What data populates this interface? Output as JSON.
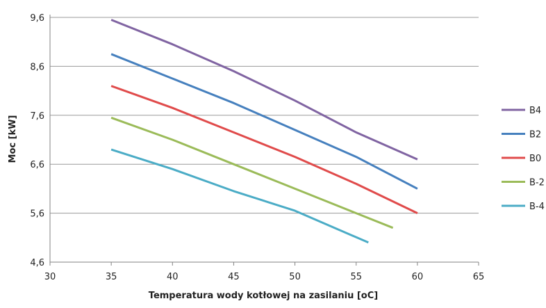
{
  "chart_data": {
    "type": "line",
    "title": "",
    "xlabel": "Temperatura wody kotłowej na zasilaniu [oC]",
    "ylabel": "Moc [kW]",
    "xlim": [
      30,
      65
    ],
    "ylim": [
      4.6,
      9.6
    ],
    "xticks": [
      "30",
      "35",
      "40",
      "45",
      "50",
      "55",
      "60",
      "65"
    ],
    "yticks": [
      "4,6",
      "5,6",
      "6,6",
      "7,6",
      "8,6",
      "9,6"
    ],
    "grid": "horizontal",
    "legend_position": "right",
    "series": [
      {
        "name": "B4",
        "color": "#8064A2",
        "x": [
          35,
          40,
          45,
          50,
          55,
          60
        ],
        "y": [
          9.55,
          9.05,
          8.5,
          7.9,
          7.25,
          6.7
        ]
      },
      {
        "name": "B2",
        "color": "#4680BE",
        "x": [
          35,
          40,
          45,
          50,
          55,
          60
        ],
        "y": [
          8.85,
          8.35,
          7.85,
          7.3,
          6.75,
          6.1
        ]
      },
      {
        "name": "B0",
        "color": "#E04B4B",
        "x": [
          35,
          40,
          45,
          50,
          55,
          60
        ],
        "y": [
          8.2,
          7.75,
          7.25,
          6.75,
          6.2,
          5.6
        ]
      },
      {
        "name": "B-2",
        "color": "#9BBB59",
        "x": [
          35,
          40,
          45,
          50,
          55,
          58
        ],
        "y": [
          7.55,
          7.1,
          6.6,
          6.1,
          5.6,
          5.3
        ]
      },
      {
        "name": "B-4",
        "color": "#4BACC6",
        "x": [
          35,
          40,
          45,
          50,
          56
        ],
        "y": [
          6.9,
          6.5,
          6.05,
          5.65,
          5.0
        ]
      }
    ]
  }
}
